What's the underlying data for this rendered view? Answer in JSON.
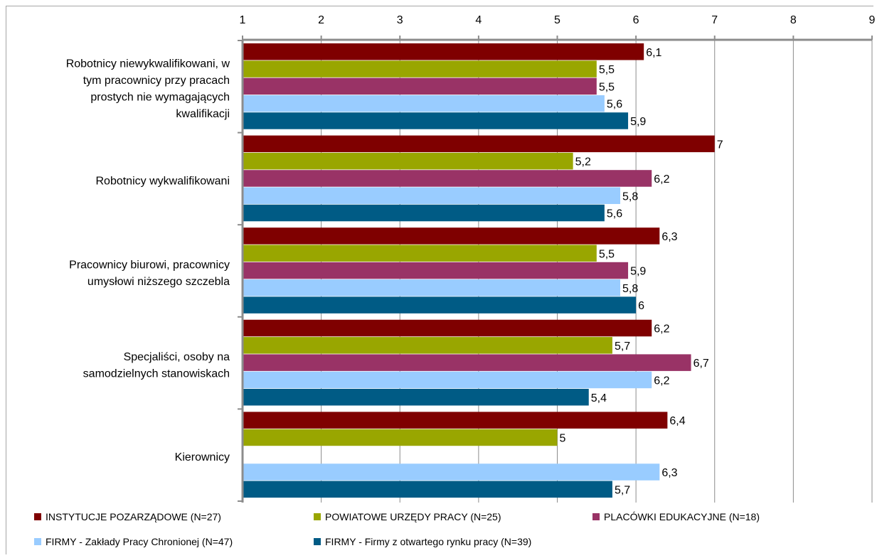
{
  "chart_data": {
    "type": "bar",
    "orientation": "horizontal",
    "categories": [
      "Robotnicy niewykwalifikowani, w tym pracownicy przy pracach prostych nie wymagających kwalifikacji",
      "Robotnicy wykwalifikowani",
      "Pracownicy biurowi, pracownicy umysłowi niższego szczebla",
      "Specjaliści, osoby na samodzielnych stanowiskach",
      "Kierownicy"
    ],
    "category_lines": [
      [
        "Robotnicy niewykwalifikowani, w",
        "tym pracownicy przy pracach",
        "prostych nie wymagających",
        "kwalifikacji"
      ],
      [
        "Robotnicy wykwalifikowani"
      ],
      [
        "Pracownicy biurowi, pracownicy",
        "umysłowi niższego szczebla"
      ],
      [
        "Specjaliści, osoby na",
        "samodzielnych stanowiskach"
      ],
      [
        "Kierownicy"
      ]
    ],
    "series": [
      {
        "name": "INSTYTUCJE POZARZĄDOWE (N=27)",
        "color": "#7f0000",
        "values": [
          6.1,
          7,
          6.3,
          6.2,
          6.4
        ],
        "labels": [
          "6,1",
          "7",
          "6,3",
          "6,2",
          "6,4"
        ]
      },
      {
        "name": "POWIATOWE URZĘDY PRACY (N=25)",
        "color": "#99a600",
        "values": [
          5.5,
          5.2,
          5.5,
          5.7,
          5
        ],
        "labels": [
          "5,5",
          "5,2",
          "5,5",
          "5,7",
          "5"
        ]
      },
      {
        "name": "PLACÓWKI EDUKACYJNE (N=18)",
        "color": "#993366",
        "values": [
          5.5,
          6.2,
          5.9,
          6.7,
          null
        ],
        "labels": [
          "5,5",
          "6,2",
          "5,9",
          "6,7",
          ""
        ]
      },
      {
        "name": "FIRMY - Zakłady Pracy Chronionej (N=47)",
        "color": "#99ccff",
        "values": [
          5.6,
          5.8,
          5.8,
          6.2,
          6.3
        ],
        "labels": [
          "5,6",
          "5,8",
          "5,8",
          "6,2",
          "6,3"
        ]
      },
      {
        "name": "FIRMY - Firmy z otwartego rynku pracy (N=39)",
        "color": "#005b85",
        "values": [
          5.9,
          5.6,
          6,
          5.4,
          5.7
        ],
        "labels": [
          "5,9",
          "5,6",
          "6",
          "5,4",
          "5,7"
        ]
      }
    ],
    "xlim": [
      1,
      9
    ],
    "ticks": [
      "1",
      "2",
      "3",
      "4",
      "5",
      "6",
      "7",
      "8",
      "9"
    ],
    "grid": true,
    "axis_position": "top",
    "legend_position": "bottom",
    "title": "",
    "xlabel": "",
    "ylabel": ""
  }
}
